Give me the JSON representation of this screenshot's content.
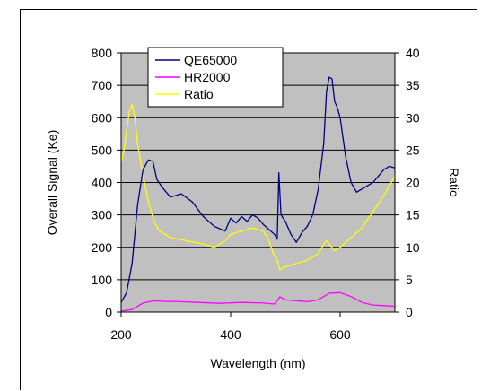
{
  "chart_data": {
    "type": "line",
    "title": "",
    "xlabel": "Wavelength (nm)",
    "ylabel": "Overall Signal (Ke)",
    "y2label": "Ratio",
    "xlim": [
      200,
      700
    ],
    "ylim": [
      0,
      800
    ],
    "y2lim": [
      0,
      40
    ],
    "xticks": [
      "200",
      "400",
      "600"
    ],
    "yticks": [
      "0",
      "100",
      "200",
      "300",
      "400",
      "500",
      "600",
      "700",
      "800"
    ],
    "y2ticks": [
      "0",
      "5",
      "10",
      "15",
      "20",
      "25",
      "30",
      "35",
      "40"
    ],
    "grid": "horizontal",
    "plot_background": "#c0c0c0",
    "legend_position": "top-left inside plot",
    "series": [
      {
        "name": "QE65000",
        "axis": "left",
        "color": "#000080",
        "x": [
          200,
          210,
          220,
          230,
          240,
          250,
          258,
          265,
          275,
          290,
          310,
          330,
          350,
          370,
          390,
          400,
          410,
          420,
          430,
          440,
          450,
          460,
          470,
          480,
          485,
          488,
          492,
          500,
          510,
          520,
          530,
          540,
          550,
          560,
          570,
          575,
          580,
          585,
          590,
          595,
          600,
          610,
          620,
          630,
          640,
          650,
          660,
          670,
          680,
          690,
          700
        ],
        "y": [
          30,
          60,
          150,
          330,
          440,
          470,
          465,
          410,
          385,
          355,
          365,
          340,
          295,
          265,
          250,
          290,
          275,
          295,
          280,
          300,
          290,
          270,
          255,
          240,
          225,
          430,
          300,
          280,
          240,
          215,
          245,
          265,
          300,
          380,
          520,
          680,
          725,
          720,
          650,
          630,
          600,
          480,
          400,
          370,
          380,
          390,
          400,
          420,
          440,
          450,
          445
        ]
      },
      {
        "name": "HR2000",
        "axis": "left",
        "color": "#ff00ff",
        "x": [
          200,
          220,
          240,
          260,
          280,
          300,
          340,
          380,
          420,
          460,
          480,
          490,
          500,
          540,
          560,
          580,
          600,
          620,
          640,
          660,
          680,
          700
        ],
        "y": [
          3,
          8,
          28,
          35,
          33,
          33,
          30,
          27,
          30,
          28,
          25,
          47,
          38,
          32,
          38,
          58,
          60,
          48,
          30,
          22,
          20,
          18
        ]
      },
      {
        "name": "Ratio",
        "axis": "right",
        "color": "#ffff00",
        "x": [
          200,
          205,
          210,
          215,
          220,
          225,
          230,
          240,
          250,
          260,
          270,
          290,
          320,
          350,
          370,
          390,
          400,
          420,
          440,
          460,
          470,
          478,
          485,
          490,
          500,
          520,
          540,
          560,
          570,
          575,
          580,
          590,
          600,
          620,
          640,
          660,
          680,
          700
        ],
        "y": [
          23,
          25,
          28,
          31,
          32,
          30,
          26,
          21,
          17,
          14,
          12.5,
          11.5,
          11,
          10.5,
          10,
          11,
          12,
          12.5,
          13,
          12.5,
          11,
          9,
          8,
          6.5,
          7,
          7.5,
          8,
          9,
          10.5,
          11,
          10.5,
          9.5,
          10,
          11.5,
          13,
          15.5,
          18,
          21
        ]
      }
    ]
  }
}
